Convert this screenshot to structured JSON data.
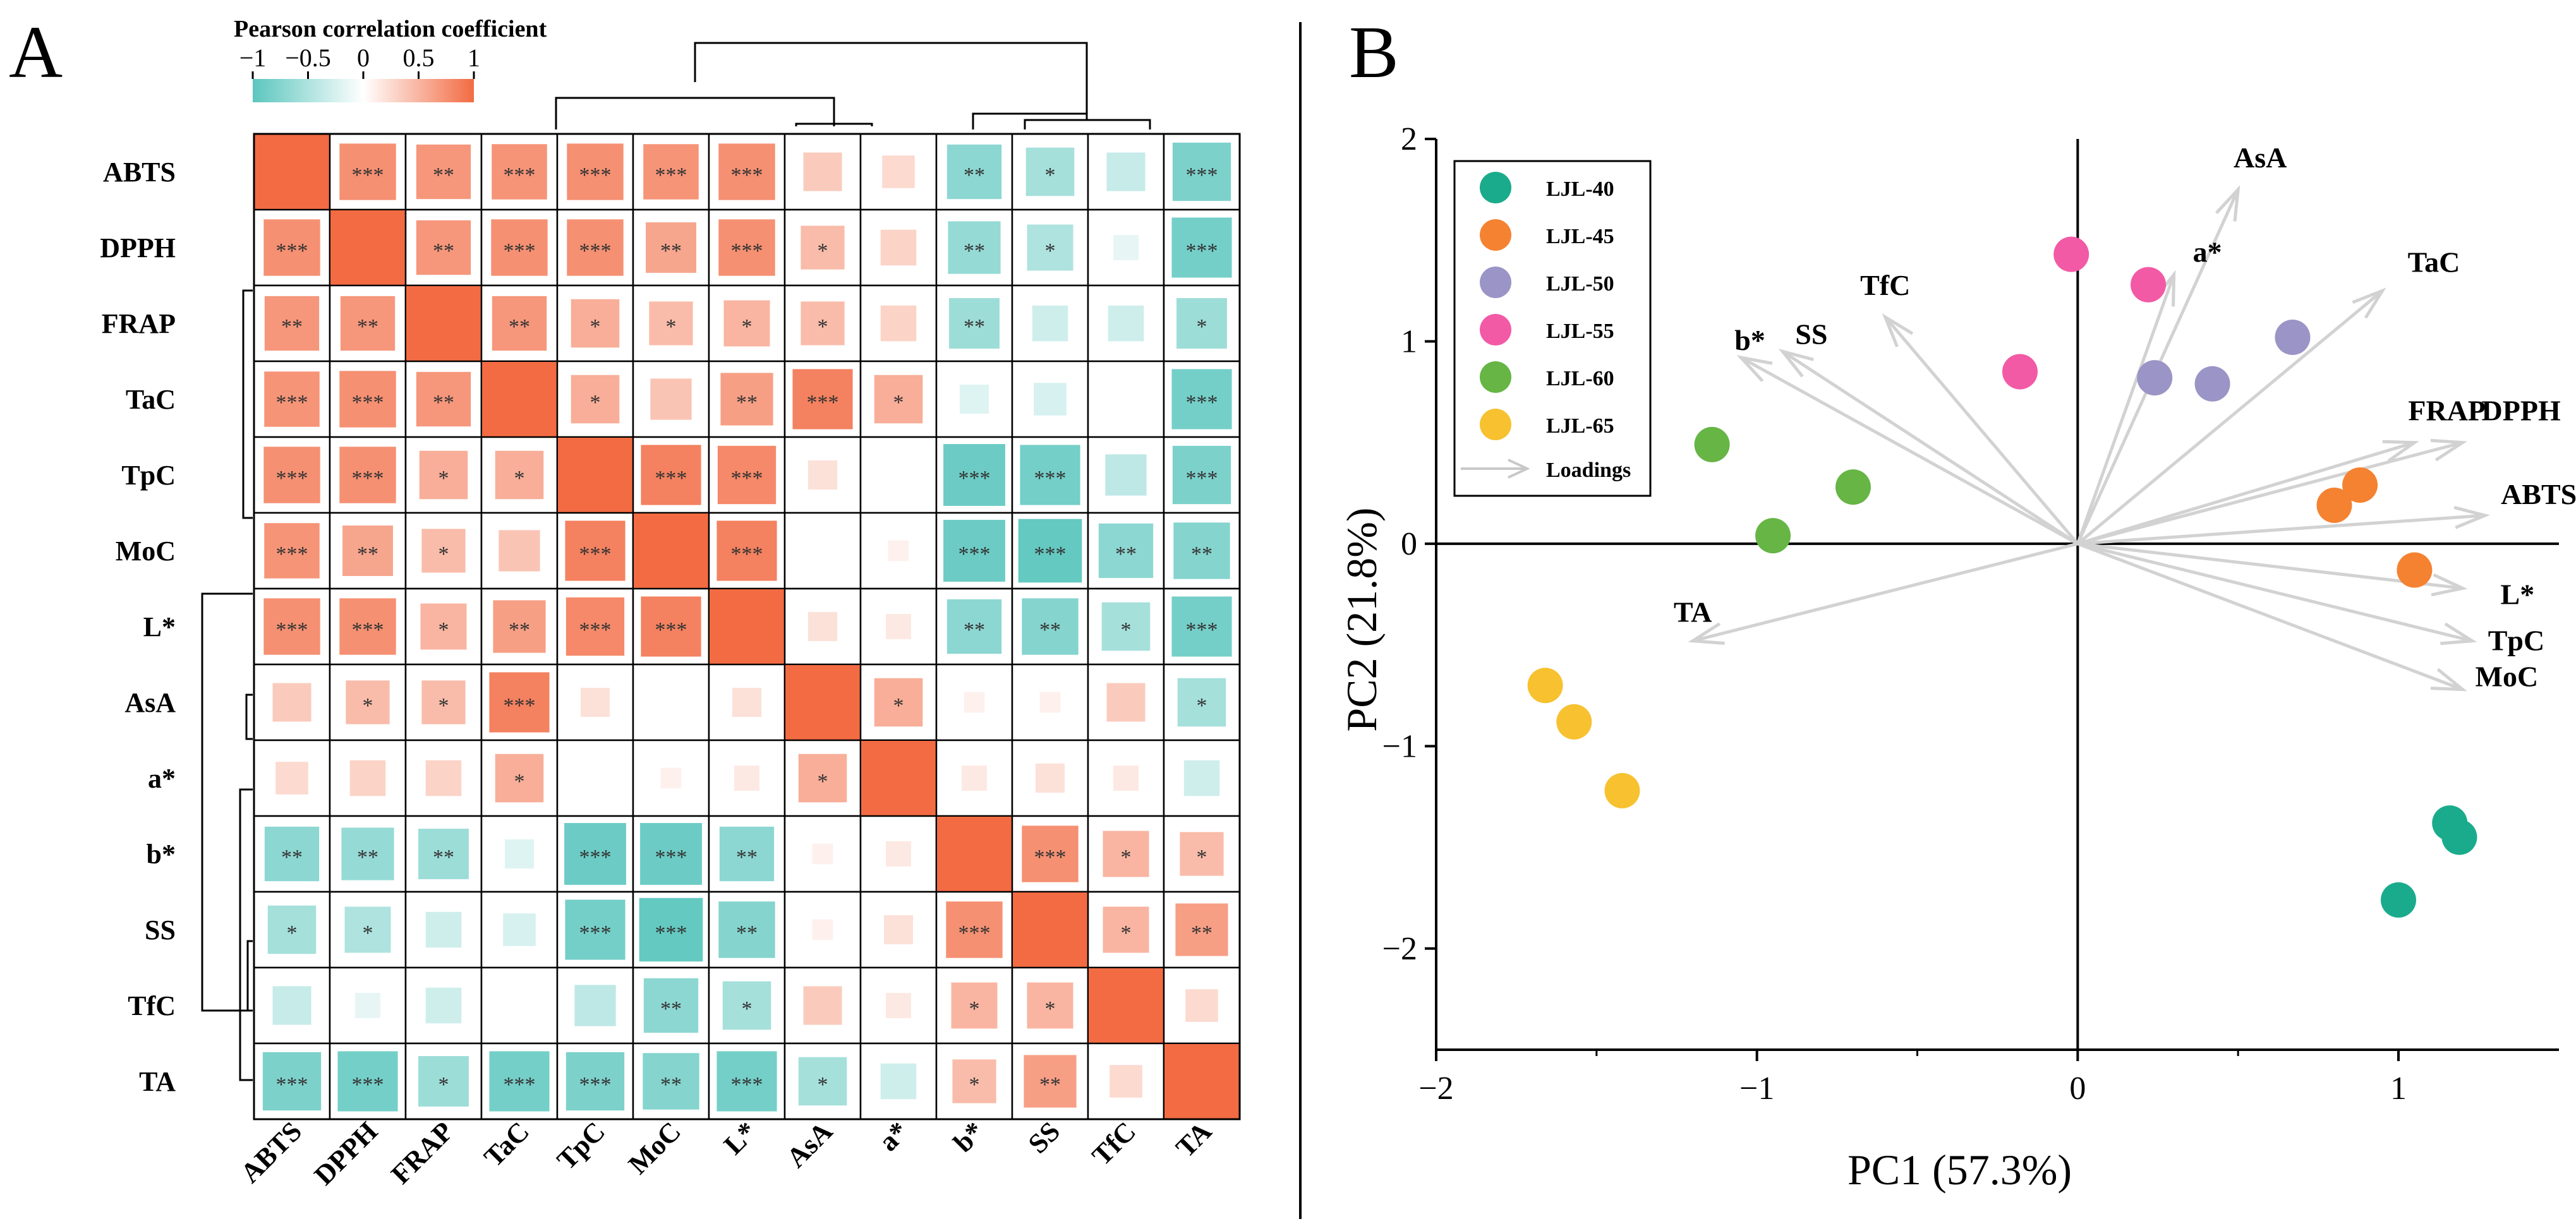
{
  "panels": {
    "a": "A",
    "b": "B"
  },
  "colors": {
    "negative": "#5cc6be",
    "positive": "#f26b43",
    "neutral": "#ffffff"
  },
  "chart_data": [
    {
      "type": "heatmap",
      "title": "Pearson correlation coefficient",
      "colorbar": {
        "ticks": [
          "−1",
          "−0.5",
          "0",
          "0.5",
          "1"
        ],
        "range": [
          -1,
          1
        ]
      },
      "variables": [
        "ABTS",
        "DPPH",
        "FRAP",
        "TaC",
        "TpC",
        "MoC",
        "L*",
        "AsA",
        "a*",
        "b*",
        "SS",
        "TfC",
        "TA"
      ],
      "values": [
        [
          1,
          0.75,
          0.7,
          0.72,
          0.75,
          0.72,
          0.75,
          0.35,
          0.25,
          -0.7,
          -0.55,
          -0.35,
          -0.8
        ],
        [
          0.75,
          1,
          0.7,
          0.75,
          0.75,
          0.6,
          0.75,
          0.45,
          0.3,
          -0.65,
          -0.5,
          -0.15,
          -0.85
        ],
        [
          0.7,
          0.7,
          1,
          0.7,
          0.55,
          0.45,
          0.5,
          0.45,
          0.3,
          -0.6,
          -0.3,
          -0.3,
          -0.6
        ],
        [
          0.72,
          0.75,
          0.7,
          1,
          0.55,
          0.4,
          0.65,
          0.85,
          0.55,
          -0.2,
          -0.25,
          0,
          -0.85
        ],
        [
          0.75,
          0.75,
          0.55,
          0.55,
          1,
          0.85,
          0.8,
          0.2,
          0,
          -0.9,
          -0.85,
          -0.4,
          -0.8
        ],
        [
          0.72,
          0.6,
          0.45,
          0.4,
          0.85,
          1,
          0.85,
          0,
          0.1,
          -0.9,
          -0.95,
          -0.7,
          -0.75
        ],
        [
          0.75,
          0.75,
          0.5,
          0.65,
          0.8,
          0.85,
          1,
          0.2,
          0.15,
          -0.7,
          -0.75,
          -0.55,
          -0.85
        ],
        [
          0.35,
          0.45,
          0.45,
          0.85,
          0.2,
          0,
          0.2,
          1,
          0.55,
          0.1,
          0.1,
          0.35,
          -0.55
        ],
        [
          0.25,
          0.3,
          0.3,
          0.55,
          0,
          0.1,
          0.15,
          0.55,
          1,
          0.15,
          0.2,
          0.15,
          -0.3
        ],
        [
          -0.7,
          -0.65,
          -0.6,
          -0.2,
          -0.9,
          -0.9,
          -0.7,
          0.1,
          0.15,
          1,
          0.75,
          0.5,
          0.45
        ],
        [
          -0.55,
          -0.5,
          -0.3,
          -0.25,
          -0.85,
          -0.95,
          -0.75,
          0.1,
          0.2,
          0.75,
          1,
          0.5,
          0.65
        ],
        [
          -0.35,
          -0.15,
          -0.3,
          0,
          -0.4,
          -0.7,
          -0.55,
          0.35,
          0.15,
          0.5,
          0.5,
          1,
          0.25
        ],
        [
          -0.8,
          -0.85,
          -0.6,
          -0.85,
          -0.8,
          -0.75,
          -0.85,
          -0.55,
          -0.3,
          0.45,
          0.65,
          0.25,
          1
        ]
      ],
      "significance": [
        [
          "",
          "***",
          "**",
          "***",
          "***",
          "***",
          "***",
          "",
          "",
          "**",
          "*",
          "",
          "***"
        ],
        [
          "***",
          "",
          "**",
          "***",
          "***",
          "**",
          "***",
          "*",
          "",
          "**",
          "*",
          "",
          "***"
        ],
        [
          "**",
          "**",
          "",
          "**",
          "*",
          "*",
          "*",
          "*",
          "",
          "**",
          "",
          "",
          "*"
        ],
        [
          "***",
          "***",
          "**",
          "",
          "*",
          "",
          "**",
          "***",
          "*",
          "",
          "",
          "",
          "***"
        ],
        [
          "***",
          "***",
          "*",
          "*",
          "",
          "***",
          "***",
          "",
          "",
          "***",
          "***",
          "",
          "***"
        ],
        [
          "***",
          "**",
          "*",
          "",
          "***",
          "",
          "***",
          "",
          "",
          "***",
          "***",
          "**",
          "**"
        ],
        [
          "***",
          "***",
          "*",
          "**",
          "***",
          "***",
          "",
          "",
          "",
          "**",
          "**",
          "*",
          "***"
        ],
        [
          "",
          "*",
          "*",
          "***",
          "",
          "",
          "",
          "",
          "*",
          "",
          "",
          "",
          "*"
        ],
        [
          "",
          "",
          "",
          "*",
          "",
          "",
          "",
          "*",
          "",
          "",
          "",
          "",
          ""
        ],
        [
          "**",
          "**",
          "**",
          "",
          "***",
          "***",
          "**",
          "",
          "",
          "",
          "***",
          "*",
          "*"
        ],
        [
          "*",
          "*",
          "",
          "",
          "***",
          "***",
          "**",
          "",
          "",
          "***",
          "",
          "*",
          "**"
        ],
        [
          "",
          "",
          "",
          "",
          "",
          "**",
          "*",
          "",
          "",
          "*",
          "*",
          "",
          ""
        ],
        [
          "***",
          "***",
          "*",
          "***",
          "***",
          "**",
          "***",
          "*",
          "",
          "*",
          "**",
          "",
          ""
        ]
      ]
    },
    {
      "type": "scatter",
      "xlabel": "PC1 (57.3%)",
      "ylabel": "PC2 (21.8%)",
      "xlim": [
        -2,
        1.5
      ],
      "ylim": [
        -2.5,
        2
      ],
      "xticks": [
        -2,
        -1,
        0,
        1
      ],
      "yticks": [
        -2,
        -1,
        0,
        1,
        2
      ],
      "xtick_labels": [
        "−2",
        "−1",
        "0",
        "1"
      ],
      "ytick_labels": [
        "−2",
        "−1",
        "0",
        "1",
        "2"
      ],
      "series": [
        {
          "name": "LJL-40",
          "color": "#1aab8c",
          "points": [
            [
              1.16,
              -1.38
            ],
            [
              1.19,
              -1.45
            ],
            [
              1.0,
              -1.76
            ]
          ]
        },
        {
          "name": "LJL-45",
          "color": "#f58231",
          "points": [
            [
              0.8,
              0.19
            ],
            [
              0.88,
              0.29
            ],
            [
              1.05,
              -0.13
            ]
          ]
        },
        {
          "name": "LJL-50",
          "color": "#9b94c6",
          "points": [
            [
              0.24,
              0.82
            ],
            [
              0.42,
              0.79
            ],
            [
              0.67,
              1.02
            ]
          ]
        },
        {
          "name": "LJL-55",
          "color": "#f25aa6",
          "points": [
            [
              -0.02,
              1.43
            ],
            [
              0.22,
              1.28
            ],
            [
              -0.18,
              0.85
            ]
          ]
        },
        {
          "name": "LJL-60",
          "color": "#66b545",
          "points": [
            [
              -1.14,
              0.49
            ],
            [
              -0.7,
              0.28
            ],
            [
              -0.95,
              0.04
            ]
          ]
        },
        {
          "name": "LJL-65",
          "color": "#f7c12f",
          "points": [
            [
              -1.66,
              -0.7
            ],
            [
              -1.57,
              -0.88
            ],
            [
              -1.42,
              -1.22
            ]
          ]
        }
      ],
      "loadings_label": "Loadings",
      "loadings": [
        {
          "name": "AsA",
          "x": 0.5,
          "y": 1.75
        },
        {
          "name": "a*",
          "x": 0.3,
          "y": 1.33
        },
        {
          "name": "TaC",
          "x": 0.95,
          "y": 1.25
        },
        {
          "name": "TfC",
          "x": -0.6,
          "y": 1.12
        },
        {
          "name": "SS",
          "x": -0.92,
          "y": 0.95
        },
        {
          "name": "b*",
          "x": -1.05,
          "y": 0.92
        },
        {
          "name": "FRAP",
          "x": 1.05,
          "y": 0.5
        },
        {
          "name": "DPPH",
          "x": 1.2,
          "y": 0.5
        },
        {
          "name": "ABTS",
          "x": 1.27,
          "y": 0.14
        },
        {
          "name": "L*",
          "x": 1.2,
          "y": -0.22
        },
        {
          "name": "TpC",
          "x": 1.23,
          "y": -0.48
        },
        {
          "name": "MoC",
          "x": 1.2,
          "y": -0.72
        },
        {
          "name": "TA",
          "x": -1.2,
          "y": -0.48
        }
      ]
    }
  ]
}
